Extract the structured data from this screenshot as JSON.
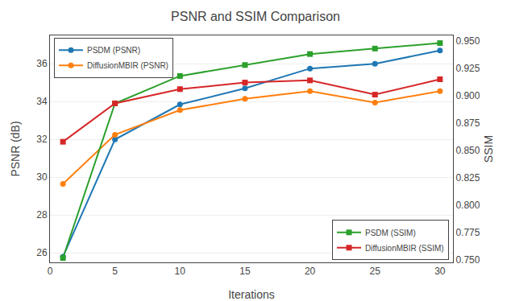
{
  "chart_data": {
    "type": "line",
    "title": "PSNR and SSIM Comparison",
    "xlabel": "Iterations",
    "ylabel": "PSNR (dB)",
    "y2label": "SSIM",
    "x": [
      1,
      5,
      10,
      15,
      20,
      25,
      30
    ],
    "series": [
      {
        "name": "PSDM (PSNR)",
        "color": "#1f77b4",
        "marker": "circle",
        "axis": "y",
        "legend": "upper left",
        "values": [
          25.8,
          32.0,
          33.85,
          34.7,
          35.75,
          36.0,
          36.7
        ]
      },
      {
        "name": "DiffusionMBIR (PSNR)",
        "color": "#ff7f0e",
        "marker": "circle",
        "axis": "y",
        "legend": "upper left",
        "values": [
          29.65,
          32.25,
          33.55,
          34.15,
          34.55,
          33.95,
          34.55
        ]
      },
      {
        "name": "PSDM (SSIM)",
        "color": "#2ca02c",
        "marker": "square",
        "axis": "y2",
        "legend": "lower right",
        "values": [
          0.752,
          0.893,
          0.918,
          0.928,
          0.938,
          0.943,
          0.948
        ]
      },
      {
        "name": "DiffusionMBIR (SSIM)",
        "color": "#d62728",
        "marker": "square",
        "axis": "y2",
        "legend": "lower right",
        "values": [
          0.858,
          0.893,
          0.906,
          0.912,
          0.914,
          0.901,
          0.915
        ]
      }
    ],
    "xlim": [
      0,
      31
    ],
    "xticks": [
      0,
      5,
      10,
      15,
      20,
      25,
      30
    ],
    "ylim": [
      25.5,
      37.5
    ],
    "yticks": [
      26,
      28,
      30,
      32,
      34,
      36
    ],
    "y2lim": [
      0.748,
      0.955
    ],
    "y2ticks": [
      {
        "value": 0.75,
        "label": "0.750"
      },
      0.775,
      {
        "value": 0.8,
        "label": "0.800"
      },
      0.825,
      {
        "value": 0.85,
        "label": "0.850"
      },
      0.875,
      {
        "value": 0.9,
        "label": "0.900"
      },
      0.925,
      {
        "value": 0.95,
        "label": "0.950"
      }
    ],
    "grid": true
  }
}
